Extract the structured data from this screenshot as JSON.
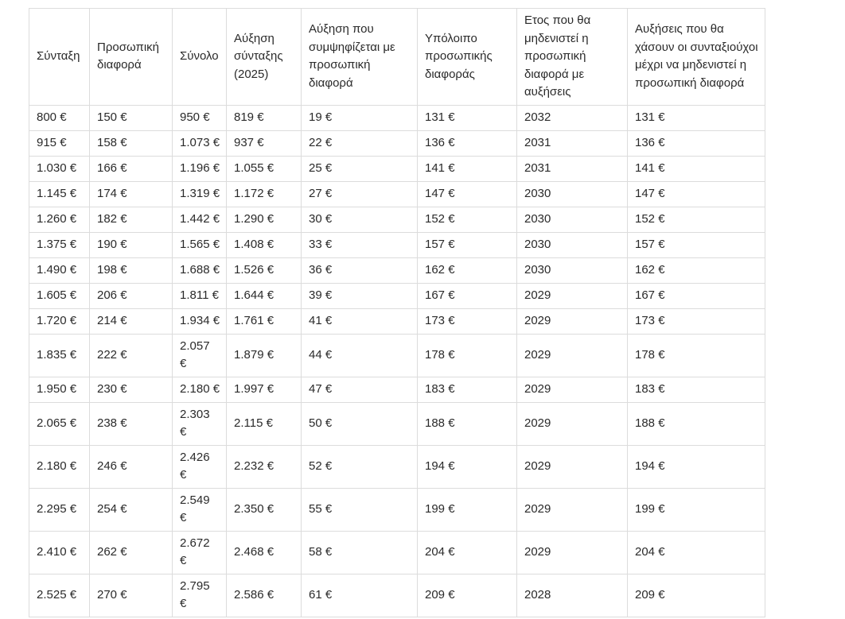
{
  "table": {
    "headers": [
      "Σύνταξη",
      "Προσωπική\nδιαφορά",
      "Σύνολο",
      "Αύξηση\nσύνταξης\n(2025)",
      "Αύξηση που\nσυμψηφίζεται με\nπροσωπική\nδιαφορά",
      "Υπόλοιπο\nπροσωπικής\nδιαφοράς",
      "Ετος που θα\nμηδενιστεί η\nπροσωπική\nδιαφορά με\nαυξήσεις",
      "Αυξήσεις που θα\nχάσουν οι συνταξιούχοι\nμέχρι να μηδενιστεί η\nπροσωπική διαφορά"
    ],
    "rows": [
      [
        "800 €",
        "150 €",
        "950 €",
        "819 €",
        "19 €",
        "131 €",
        "2032",
        "131 €"
      ],
      [
        "915 €",
        "158 €",
        "1.073 €",
        "937 €",
        "22 €",
        "136 €",
        "2031",
        "136 €"
      ],
      [
        "1.030 €",
        "166 €",
        "1.196 €",
        "1.055 €",
        "25 €",
        "141 €",
        "2031",
        "141 €"
      ],
      [
        "1.145 €",
        "174 €",
        "1.319 €",
        "1.172 €",
        "27 €",
        "147 €",
        "2030",
        "147 €"
      ],
      [
        "1.260 €",
        "182 €",
        "1.442 €",
        "1.290 €",
        "30 €",
        "152 €",
        "2030",
        "152 €"
      ],
      [
        "1.375 €",
        "190 €",
        "1.565 €",
        "1.408 €",
        "33 €",
        "157 €",
        "2030",
        "157 €"
      ],
      [
        "1.490 €",
        "198 €",
        "1.688 €",
        "1.526 €",
        "36 €",
        "162 €",
        "2030",
        "162 €"
      ],
      [
        "1.605 €",
        "206 €",
        "1.811 €",
        "1.644 €",
        "39 €",
        "167 €",
        "2029",
        "167 €"
      ],
      [
        "1.720 €",
        "214 €",
        "1.934 €",
        "1.761 €",
        "41 €",
        "173 €",
        "2029",
        "173 €"
      ],
      [
        "1.835 €",
        "222 €",
        "2.057\n€",
        "1.879 €",
        "44 €",
        "178 €",
        "2029",
        "178 €"
      ],
      [
        "1.950 €",
        "230 €",
        "2.180 €",
        "1.997 €",
        "47 €",
        "183 €",
        "2029",
        "183 €"
      ],
      [
        "2.065 €",
        "238 €",
        "2.303\n€",
        "2.115 €",
        "50 €",
        "188 €",
        "2029",
        "188 €"
      ],
      [
        "2.180 €",
        "246 €",
        "2.426\n€",
        "2.232 €",
        "52 €",
        "194 €",
        "2029",
        "194 €"
      ],
      [
        "2.295 €",
        "254 €",
        "2.549\n€",
        "2.350 €",
        "55 €",
        "199 €",
        "2029",
        "199 €"
      ],
      [
        "2.410 €",
        "262 €",
        "2.672\n€",
        "2.468 €",
        "58 €",
        "204 €",
        "2029",
        "204 €"
      ],
      [
        "2.525 €",
        "270 €",
        "2.795\n€",
        "2.586 €",
        "61 €",
        "209 €",
        "2028",
        "209 €"
      ]
    ],
    "colors": {
      "text": "#2a2a2a",
      "border": "#dcdcdc",
      "background": "#ffffff"
    }
  }
}
